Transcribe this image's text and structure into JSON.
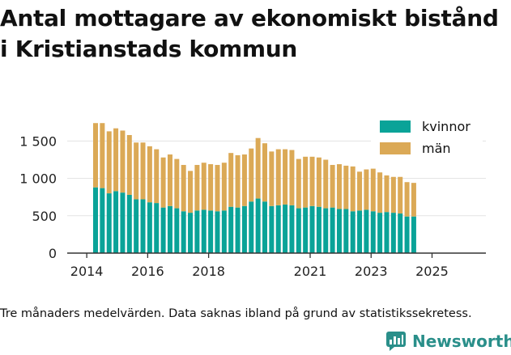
{
  "title_lines": [
    "Antal mottagare av ekonomiskt bistånd",
    "i Kristianstads kommun"
  ],
  "footnote": "Tre månaders medelvärden. Data saknas ibland på grund av statistikssekretess.",
  "brand": "Newsworthy",
  "colors": {
    "kvinnor": "#0aa398",
    "man": "#dba956",
    "brand": "#2a8f8a",
    "axis": "#333333"
  },
  "chart_data": {
    "type": "bar",
    "stacked": true,
    "title": "Antal mottagare av ekonomiskt bistånd i Kristianstads kommun",
    "xlabel": "",
    "ylabel": "",
    "ylim": [
      0,
      1850
    ],
    "yticks": [
      0,
      500,
      1000,
      1500
    ],
    "ytick_labels": [
      "0",
      "500",
      "1 000",
      "1 500"
    ],
    "xticks": [
      {
        "label": "2014",
        "index": -1.3
      },
      {
        "label": "2016",
        "index": 7.7
      },
      {
        "label": "2018",
        "index": 16.7
      },
      {
        "label": "2021",
        "index": 31.7
      },
      {
        "label": "2023",
        "index": 40.7
      },
      {
        "label": "2025",
        "index": 49.7
      }
    ],
    "legend": {
      "position": "top-right",
      "entries": [
        "kvinnor",
        "män"
      ]
    },
    "categories": [
      "2014-Q2",
      "2014-Q3",
      "2014-Q4",
      "2015-Q1",
      "2015-Q2",
      "2015-Q3",
      "2015-Q4",
      "2016-Q1",
      "2016-Q2",
      "2016-Q3",
      "2016-Q4",
      "2017-Q1",
      "2017-Q2",
      "2017-Q3",
      "2017-Q4",
      "2018-Q1",
      "2018-Q2",
      "2018-Q3",
      "2018-Q4",
      "2019-Q1",
      "2019-Q2",
      "2019-Q3",
      "2019-Q4",
      "2020-Q1",
      "2020-Q2",
      "2020-Q3",
      "2020-Q4",
      "2021-Q1",
      "2021-Q2",
      "2021-Q3",
      "2021-Q4",
      "2022-Q1",
      "2022-Q2",
      "2022-Q3",
      "2022-Q4",
      "2023-Q1",
      "2023-Q2",
      "2023-Q3",
      "2023-Q4",
      "2024-Q1",
      "2024-Q2",
      "2024-Q3",
      "2024-Q4",
      "2025-Q1",
      "2025-Q2",
      "2025-Q3",
      "2025-Q4",
      "2026-Q1"
    ],
    "series": [
      {
        "name": "kvinnor",
        "values": [
          880,
          870,
          800,
          830,
          810,
          780,
          720,
          720,
          680,
          670,
          610,
          630,
          600,
          560,
          540,
          570,
          580,
          570,
          560,
          570,
          620,
          610,
          630,
          690,
          730,
          690,
          630,
          640,
          650,
          640,
          600,
          610,
          630,
          620,
          600,
          610,
          590,
          590,
          560,
          570,
          580,
          560,
          540,
          550,
          540,
          530,
          490,
          490
        ]
      },
      {
        "name": "män",
        "values": [
          860,
          870,
          830,
          840,
          830,
          800,
          760,
          760,
          750,
          720,
          670,
          690,
          660,
          620,
          560,
          610,
          630,
          620,
          620,
          640,
          720,
          700,
          690,
          710,
          810,
          780,
          730,
          750,
          740,
          740,
          660,
          680,
          660,
          660,
          650,
          570,
          600,
          580,
          600,
          520,
          540,
          570,
          540,
          490,
          480,
          490,
          460,
          450
        ]
      }
    ]
  }
}
